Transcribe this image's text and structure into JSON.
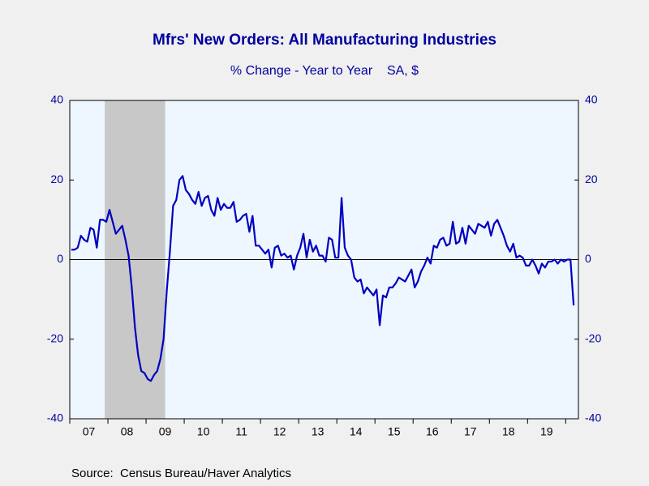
{
  "chart_data": {
    "type": "line",
    "title": "Mfrs' New Orders: All Manufacturing Industries",
    "subtitle": "% Change - Year to Year    SA, $",
    "source": "Source:  Census Bureau/Haver Analytics",
    "categories": [
      null,
      null,
      null,
      null,
      null,
      null,
      "07",
      null,
      null,
      null,
      null,
      null,
      null,
      null,
      null,
      null,
      null,
      null,
      "08",
      null,
      null,
      null,
      null,
      null,
      null,
      null,
      null,
      null,
      null,
      null,
      "09",
      null,
      null,
      null,
      null,
      null,
      null,
      null,
      null,
      null,
      null,
      null,
      "10",
      null,
      null,
      null,
      null,
      null,
      null,
      null,
      null,
      null,
      null,
      null,
      "11",
      null,
      null,
      null,
      null,
      null,
      null,
      null,
      null,
      null,
      null,
      null,
      "12",
      null,
      null,
      null,
      null,
      null,
      null,
      null,
      null,
      null,
      null,
      null,
      "13",
      null,
      null,
      null,
      null,
      null,
      null,
      null,
      null,
      null,
      null,
      null,
      "14",
      null,
      null,
      null,
      null,
      null,
      null,
      null,
      null,
      null,
      null,
      null,
      "15",
      null,
      null,
      null,
      null,
      null,
      null,
      null,
      null,
      null,
      null,
      null,
      "16",
      null,
      null,
      null,
      null,
      null,
      null,
      null,
      null,
      null,
      null,
      null,
      "17",
      null,
      null,
      null,
      null,
      null,
      null,
      null,
      null,
      null,
      null,
      null,
      "18",
      null,
      null,
      null,
      null,
      null,
      null,
      null,
      null,
      null,
      null,
      null,
      "19",
      null,
      null,
      null,
      null,
      null,
      null,
      null,
      null
    ],
    "series": [
      {
        "name": "Mfrs' New Orders",
        "color": "#0000c0",
        "values": [
          2.5,
          2.5,
          3,
          6,
          5,
          4.5,
          8,
          7.5,
          3,
          10,
          10,
          9.5,
          12.5,
          9.5,
          6.5,
          7.5,
          8.5,
          5,
          1,
          -7,
          -17,
          -24,
          -28,
          -28.5,
          -30,
          -30.5,
          -29,
          -28,
          -25,
          -20,
          -8,
          2,
          13.5,
          15,
          20,
          21,
          17.5,
          16.5,
          15,
          14,
          17,
          13.5,
          15.5,
          16,
          12.5,
          11,
          15.5,
          12.5,
          14,
          13,
          13,
          14.5,
          9.5,
          10,
          11,
          11.5,
          7,
          11,
          3.5,
          3.5,
          2.5,
          1.5,
          2.5,
          -2,
          3,
          3.5,
          1,
          1.5,
          0.5,
          1,
          -2.5,
          1,
          3,
          6.5,
          0.5,
          5,
          2,
          3.5,
          1,
          1,
          -0.5,
          5.5,
          5,
          0.5,
          0.5,
          15.5,
          3,
          1,
          0,
          -4.5,
          -5.5,
          -5,
          -8.5,
          -7,
          -8,
          -9,
          -7.5,
          -16.5,
          -9,
          -9.5,
          -7,
          -7,
          -6,
          -4.5,
          -5,
          -5.5,
          -4,
          -2.5,
          -7,
          -5.5,
          -3,
          -1.5,
          0.5,
          -1,
          3.5,
          3,
          5,
          5.5,
          3.5,
          4,
          9.5,
          4,
          4.5,
          8,
          4,
          8.5,
          7.5,
          6.5,
          9,
          8.5,
          8,
          9.5,
          6,
          9,
          10,
          8,
          6,
          3.5,
          2,
          4,
          0.5,
          1,
          0.5,
          -1.5,
          -1.5,
          0,
          -1.5,
          -3.5,
          -1,
          -2,
          -0.5,
          -0.5,
          0,
          -1,
          0,
          -0.5,
          0,
          0,
          -11.5
        ]
      }
    ],
    "recession": {
      "start": 11,
      "end": 29
    },
    "ylim": [
      -40,
      40
    ],
    "yticks": [
      -40,
      -20,
      0,
      20,
      40
    ],
    "y2lim": [
      -40,
      40
    ],
    "y2ticks": [
      -40,
      -20,
      0,
      20,
      40
    ],
    "colors": {
      "plot": "#eef6ff",
      "recession": "#c8c8c8",
      "text": "#0000a0"
    }
  }
}
